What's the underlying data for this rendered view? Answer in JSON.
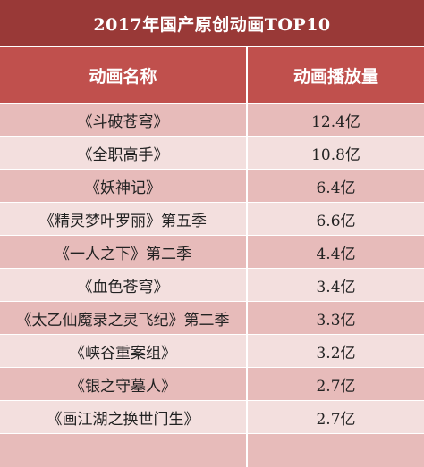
{
  "title": "2017年国产原创动画TOP10",
  "headers": {
    "name": "动画名称",
    "plays": "动画播放量"
  },
  "rows": [
    {
      "name": "《斗破苍穹》",
      "plays": "12.4亿"
    },
    {
      "name": "《全职高手》",
      "plays": "10.8亿"
    },
    {
      "name": "《妖神记》",
      "plays": "6.4亿"
    },
    {
      "name": "《精灵梦叶罗丽》第五季",
      "plays": "6.6亿"
    },
    {
      "name": "《一人之下》第二季",
      "plays": "4.4亿"
    },
    {
      "name": "《血色苍穹》",
      "plays": "3.4亿"
    },
    {
      "name": "《太乙仙魔录之灵飞纪》第二季",
      "plays": "3.3亿"
    },
    {
      "name": "《峡谷重案组》",
      "plays": "3.2亿"
    },
    {
      "name": "《银之守墓人》",
      "plays": "2.7亿"
    },
    {
      "name": "《画江湖之换世门生》",
      "plays": "2.7亿"
    }
  ],
  "colors": {
    "title_bg": "#993937",
    "header_bg": "#c0504d",
    "row_odd": "#e7bbba",
    "row_even": "#f3dfde"
  }
}
